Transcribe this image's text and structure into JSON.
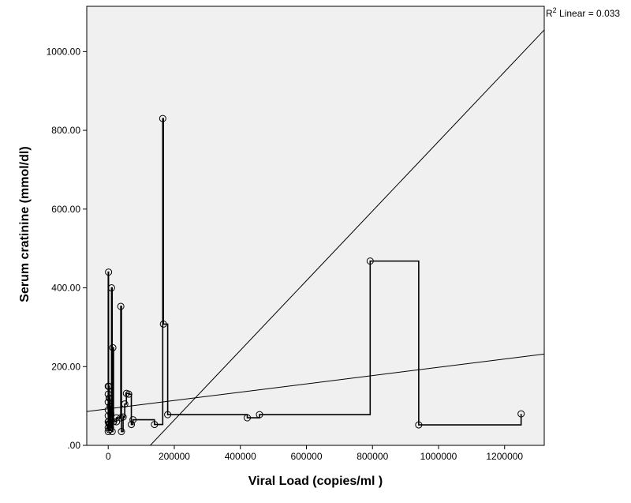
{
  "chart_data": {
    "type": "scatter",
    "xlabel": "Viral Load (copies/ml )",
    "ylabel": "Serum cratinine (mmol/dl)",
    "xlim": [
      -65000,
      1320000
    ],
    "ylim": [
      0,
      1115
    ],
    "grid": false,
    "x_ticks": [
      0,
      200000,
      400000,
      600000,
      800000,
      1000000,
      1200000
    ],
    "x_tick_labels": [
      "0",
      "200000",
      "400000",
      "600000",
      "800000",
      "1000000",
      "1200000"
    ],
    "y_ticks": [
      0,
      200,
      400,
      600,
      800,
      1000
    ],
    "y_tick_labels": [
      ".00",
      "200.00",
      "400.00",
      "600.00",
      "800.00",
      "1000.00"
    ],
    "annotation": {
      "text": "R",
      "sup": "2",
      "rest": " Linear = 0.033"
    },
    "colors": {
      "plot_bg": "#f0f0f0",
      "line": "#000000",
      "marker_edge": "#000000"
    },
    "step_line": [
      [
        0,
        35
      ],
      [
        0,
        440
      ],
      [
        1000,
        440
      ],
      [
        1000,
        60
      ],
      [
        2000,
        60
      ],
      [
        2000,
        150
      ],
      [
        3000,
        150
      ],
      [
        3000,
        40
      ],
      [
        4000,
        40
      ],
      [
        4000,
        120
      ],
      [
        5000,
        120
      ],
      [
        5000,
        55
      ],
      [
        6000,
        55
      ],
      [
        6000,
        100
      ],
      [
        7000,
        100
      ],
      [
        7000,
        45
      ],
      [
        8000,
        45
      ],
      [
        8000,
        80
      ],
      [
        10000,
        80
      ],
      [
        10000,
        400
      ],
      [
        12000,
        400
      ],
      [
        12000,
        35
      ],
      [
        14000,
        35
      ],
      [
        14000,
        248
      ],
      [
        16000,
        248
      ],
      [
        16000,
        60
      ],
      [
        25000,
        60
      ],
      [
        25000,
        70
      ],
      [
        38000,
        70
      ],
      [
        38000,
        353
      ],
      [
        40000,
        353
      ],
      [
        40000,
        35
      ],
      [
        45000,
        35
      ],
      [
        45000,
        72
      ],
      [
        50000,
        72
      ],
      [
        50000,
        105
      ],
      [
        55000,
        105
      ],
      [
        55000,
        132
      ],
      [
        62000,
        132
      ],
      [
        62000,
        130
      ],
      [
        70000,
        130
      ],
      [
        70000,
        53
      ],
      [
        75000,
        53
      ],
      [
        75000,
        65
      ],
      [
        140000,
        65
      ],
      [
        140000,
        53
      ],
      [
        165000,
        53
      ],
      [
        165000,
        830
      ],
      [
        167000,
        830
      ],
      [
        167000,
        308
      ],
      [
        180000,
        308
      ],
      [
        180000,
        78
      ],
      [
        421000,
        78
      ],
      [
        421000,
        70
      ],
      [
        458000,
        70
      ],
      [
        458000,
        78
      ],
      [
        793000,
        78
      ],
      [
        793000,
        468
      ],
      [
        940000,
        468
      ],
      [
        940000,
        52
      ],
      [
        1250000,
        52
      ],
      [
        1250000,
        80
      ]
    ],
    "points": [
      [
        0,
        35
      ],
      [
        0,
        45
      ],
      [
        0,
        60
      ],
      [
        0,
        75
      ],
      [
        0,
        90
      ],
      [
        0,
        110
      ],
      [
        0,
        130
      ],
      [
        0,
        150
      ],
      [
        1000,
        440
      ],
      [
        1000,
        60
      ],
      [
        2000,
        150
      ],
      [
        2000,
        55
      ],
      [
        3000,
        40
      ],
      [
        3000,
        120
      ],
      [
        4000,
        120
      ],
      [
        4000,
        55
      ],
      [
        5000,
        55
      ],
      [
        6000,
        100
      ],
      [
        6000,
        45
      ],
      [
        7000,
        45
      ],
      [
        8000,
        80
      ],
      [
        10000,
        400
      ],
      [
        12000,
        35
      ],
      [
        14000,
        248
      ],
      [
        16000,
        60
      ],
      [
        25000,
        60
      ],
      [
        25000,
        70
      ],
      [
        38000,
        70
      ],
      [
        38000,
        353
      ],
      [
        40000,
        35
      ],
      [
        45000,
        72
      ],
      [
        50000,
        105
      ],
      [
        55000,
        132
      ],
      [
        62000,
        130
      ],
      [
        70000,
        53
      ],
      [
        75000,
        65
      ],
      [
        140000,
        53
      ],
      [
        165000,
        830
      ],
      [
        167000,
        308
      ],
      [
        180000,
        78
      ],
      [
        421000,
        70
      ],
      [
        458000,
        78
      ],
      [
        793000,
        468
      ],
      [
        940000,
        52
      ],
      [
        1250000,
        80
      ]
    ],
    "fit_lines": [
      {
        "x": [
          -65000,
          1320000
        ],
        "y": [
          86,
          232
        ]
      },
      {
        "x": [
          -65000,
          1320000
        ],
        "y": [
          -170,
          1055
        ]
      }
    ]
  }
}
